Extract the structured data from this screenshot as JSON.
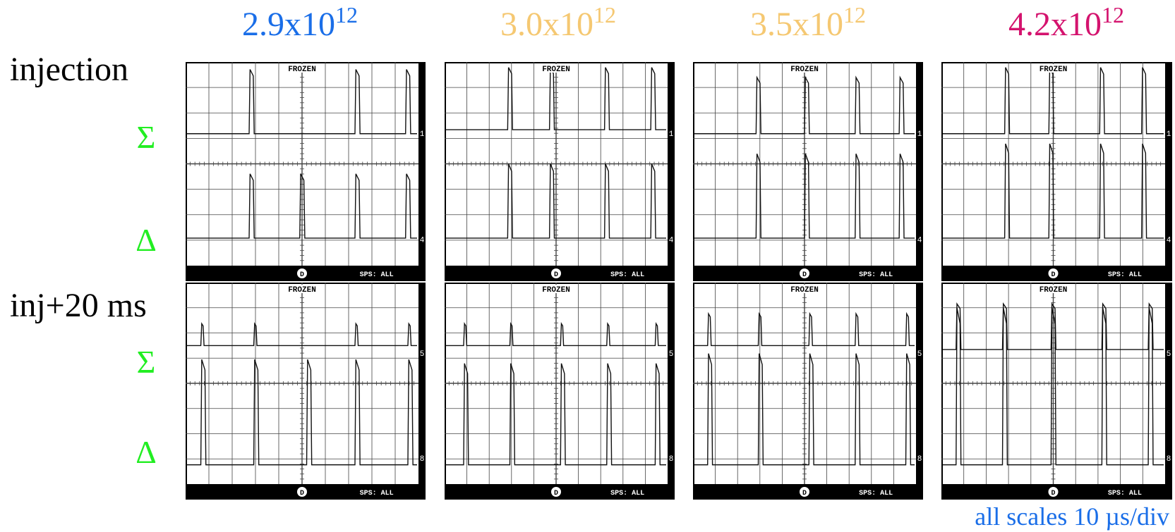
{
  "columns": [
    {
      "header": {
        "base": "2.9x10",
        "exp": "12"
      },
      "color": "#1a6ee8",
      "screens": [
        {
          "status": "FROZEN",
          "channels": [
            "1",
            "4"
          ],
          "cursor": "D",
          "footer": "SPS: ALL"
        },
        {
          "status": "FROZEN",
          "channels": [
            "5",
            "8"
          ],
          "cursor": "D",
          "footer": "SPS: ALL"
        }
      ]
    },
    {
      "header": {
        "base": "3.0x10",
        "exp": "12"
      },
      "color": "#f5c872",
      "screens": [
        {
          "status": "FROZEN",
          "channels": [
            "1",
            "4"
          ],
          "cursor": "D",
          "footer": "SPS: ALL"
        },
        {
          "status": "FROZEN",
          "channels": [
            "5",
            "8"
          ],
          "cursor": "D",
          "footer": "SPS: ALL"
        }
      ]
    },
    {
      "header": {
        "base": "3.5x10",
        "exp": "12"
      },
      "color": "#f5c872",
      "screens": [
        {
          "status": "FROZEN",
          "channels": [
            "1",
            "4"
          ],
          "cursor": "D",
          "footer": "SPS: ALL"
        },
        {
          "status": "FROZEN",
          "channels": [
            "5",
            "8"
          ],
          "cursor": "D",
          "footer": "SPS: ALL"
        }
      ]
    },
    {
      "header": {
        "base": "4.2x10",
        "exp": "12"
      },
      "color": "#d4136e",
      "screens": [
        {
          "status": "FROZEN",
          "channels": [
            "1",
            "4"
          ],
          "cursor": "D",
          "footer": "SPS: ALL"
        },
        {
          "status": "FROZEN",
          "channels": [
            "5",
            "8"
          ],
          "cursor": "D",
          "footer": "SPS: ALL"
        }
      ]
    }
  ],
  "rows": [
    {
      "label": "injection",
      "signals": [
        "Σ",
        "Δ"
      ]
    },
    {
      "label": "inj+20 ms",
      "signals": [
        "Σ",
        "Δ"
      ]
    }
  ],
  "signal_color": "#22ee22",
  "note": "all scales 10 µs/div",
  "note_color": "#1a6ee8"
}
